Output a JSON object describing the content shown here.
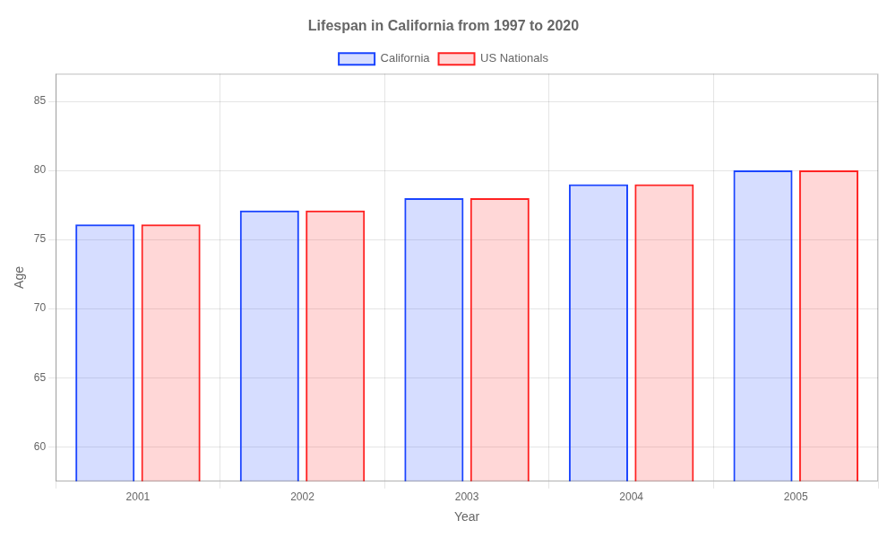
{
  "chart_data": {
    "type": "bar",
    "title": "Lifespan in California from 1997 to 2020",
    "x_label": "Year",
    "y_label": "Age",
    "categories": [
      "2001",
      "2002",
      "2003",
      "2004",
      "2005"
    ],
    "series": [
      {
        "name": "California",
        "color": "#1a44ff",
        "values": [
          76.1,
          77.1,
          78.0,
          79.0,
          80.0
        ]
      },
      {
        "name": "US Nationals",
        "color": "#ff2222",
        "values": [
          76.1,
          77.1,
          78.0,
          79.0,
          80.0
        ]
      }
    ],
    "ylim": [
      57.5,
      87
    ],
    "yticks": [
      60,
      65,
      70,
      75,
      80,
      85
    ],
    "grid": true,
    "legend": "top"
  }
}
